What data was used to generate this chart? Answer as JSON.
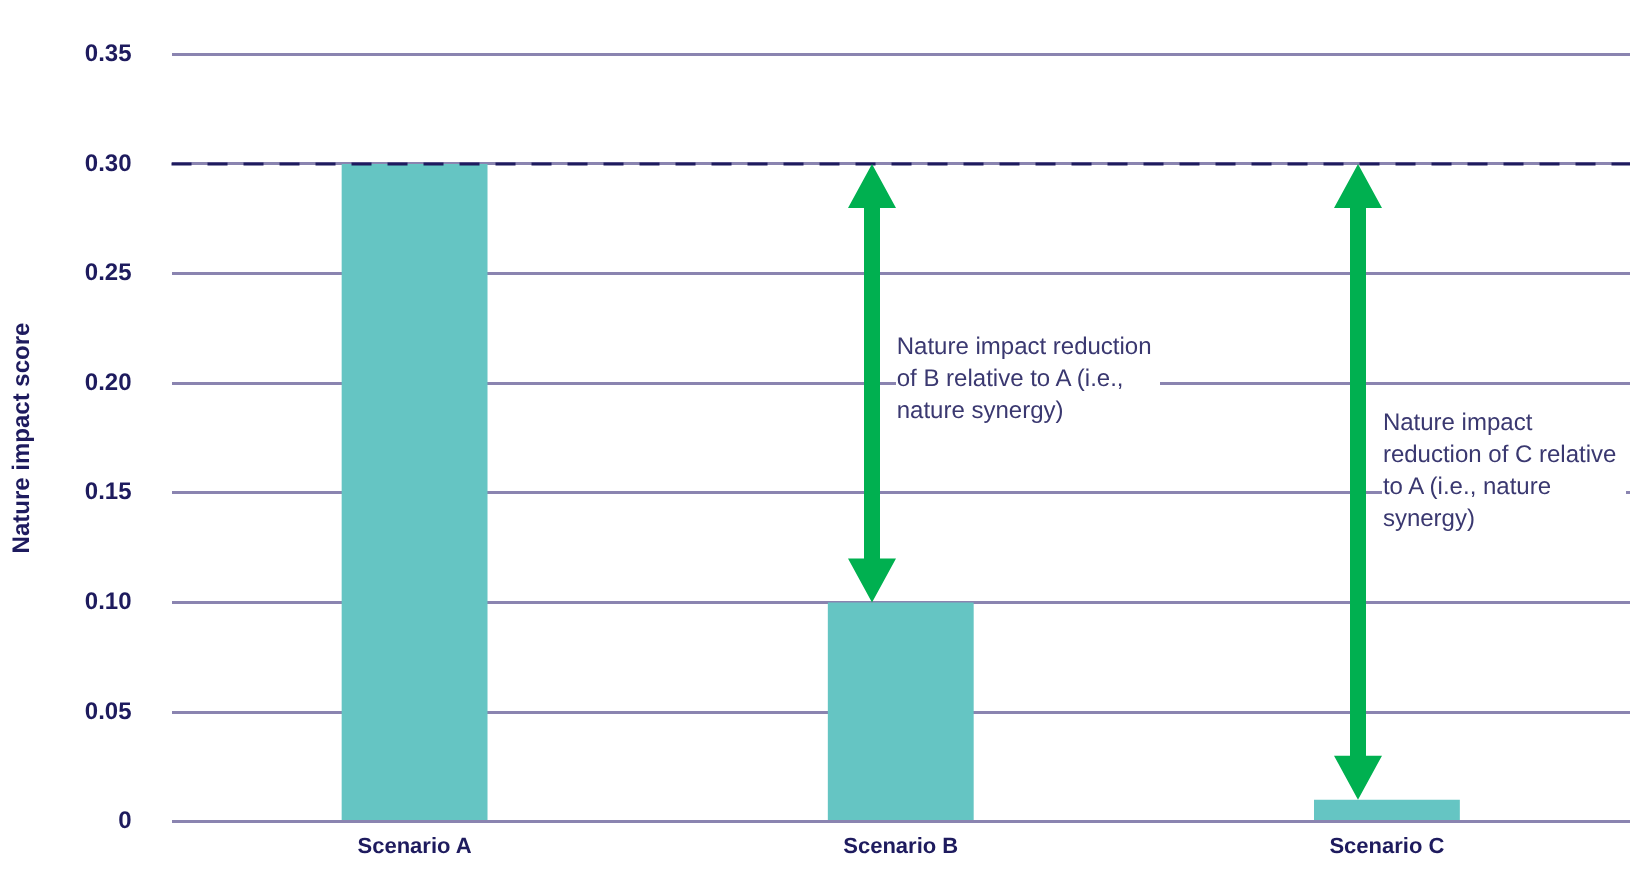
{
  "chart_data": {
    "type": "bar",
    "ylabel": "Nature impact score",
    "categories": [
      "Scenario A",
      "Scenario B",
      "Scenario C"
    ],
    "values": [
      0.3,
      0.1,
      0.01
    ],
    "color": "#65c5c3",
    "ylim": [
      0,
      0.35
    ],
    "yticks": [
      {
        "value": 0,
        "label": "0"
      },
      {
        "value": 0.05,
        "label": "0.05"
      },
      {
        "value": 0.1,
        "label": "0.10"
      },
      {
        "value": 0.15,
        "label": "0.15"
      },
      {
        "value": 0.2,
        "label": "0.20"
      },
      {
        "value": 0.25,
        "label": "0.25"
      },
      {
        "value": 0.3,
        "label": "0.30"
      },
      {
        "value": 0.35,
        "label": "0.35"
      }
    ],
    "grid": "y",
    "legend": false,
    "ref_lines": [
      {
        "axis": "y",
        "value": 0.3,
        "color": "#1e1b5e",
        "line_style": "dashed"
      }
    ],
    "annotations": [
      "Nature impact reduction of B relative to A (i.e., nature synergy)",
      "Nature impact reduction of C relative to A (i.e., nature synergy)"
    ]
  }
}
